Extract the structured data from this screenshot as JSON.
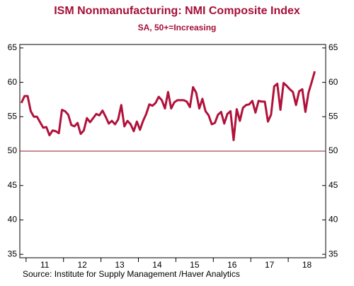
{
  "chart_data": {
    "type": "line",
    "title": "ISM Nonmanufacturing: NMI Composite Index",
    "subtitle": "SA, 50+=Increasing",
    "source": "Source:  Institute for Supply Management /Haver Analytics",
    "categories": [
      null,
      null,
      null,
      null,
      null,
      null,
      null,
      null,
      "11",
      null,
      null,
      null,
      null,
      null,
      null,
      null,
      null,
      null,
      null,
      null,
      "12",
      null,
      null,
      null,
      null,
      null,
      null,
      null,
      null,
      null,
      null,
      null,
      "13",
      null,
      null,
      null,
      null,
      null,
      null,
      null,
      null,
      null,
      null,
      null,
      "14",
      null,
      null,
      null,
      null,
      null,
      null,
      null,
      null,
      null,
      null,
      null,
      "15",
      null,
      null,
      null,
      null,
      null,
      null,
      null,
      null,
      null,
      null,
      null,
      "16",
      null,
      null,
      null,
      null,
      null,
      null,
      null,
      null,
      null,
      null,
      null,
      "17",
      null,
      null,
      null,
      null,
      null,
      null,
      null,
      null,
      null,
      null,
      null,
      "18",
      null,
      null,
      null,
      null,
      null
    ],
    "series": [
      {
        "name": "NMI Composite Index",
        "color": "#b0123b",
        "values": [
          57,
          58,
          58,
          55.8,
          55,
          55,
          54.2,
          53.4,
          53.5,
          52.3,
          53,
          52.9,
          52.6,
          56,
          55.8,
          55.3,
          53.8,
          53.6,
          54.1,
          52.5,
          53,
          54.8,
          54.2,
          54.8,
          55.4,
          55.2,
          55.9,
          55,
          54,
          54.4,
          53.9,
          54.6,
          56.7,
          53.6,
          54.4,
          53.9,
          52.9,
          54.3,
          53.1,
          54.4,
          55.4,
          56.8,
          56.6,
          57,
          57.9,
          57.4,
          56.2,
          58.6,
          56.2,
          57.1,
          57.4,
          57.4,
          57.4,
          57.2,
          56.4,
          59.3,
          58.5,
          56.2,
          57.6,
          55.8,
          55.2,
          53.9,
          54.1,
          55.3,
          55.7,
          54,
          55.4,
          55.8,
          51.6,
          56.1,
          54.4,
          56.3,
          56.7,
          56.8,
          57.3,
          55.6,
          57.3,
          57.2,
          57.2,
          54.3,
          55.3,
          59.4,
          59.8,
          56,
          59.9,
          59.5,
          59,
          58.6,
          56.7,
          58.7,
          59,
          55.7,
          58.5,
          60,
          61.6,
          null,
          null,
          null
        ]
      }
    ],
    "reference_line": 50,
    "ylim": [
      34.5,
      65.5
    ],
    "yticks": [
      35,
      40,
      45,
      50,
      55,
      60,
      65
    ]
  }
}
